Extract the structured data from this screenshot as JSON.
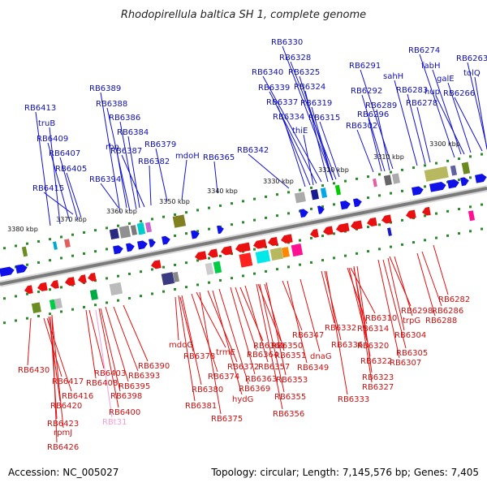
{
  "title": "Rhodopirellula baltica SH 1, complete genome",
  "footer": {
    "accession": "Accession: NC_005027",
    "summary": "Topology: circular; Length: 7,145,576 bp; Genes: 7,405"
  },
  "ruler_labels": [
    "3300 kbp",
    "3310 kbp",
    "3320 kbp",
    "3330 kbp",
    "3340 kbp",
    "3350 kbp",
    "3360 kbp",
    "3370 kbp",
    "3380 kbp"
  ],
  "colors": {
    "forward": "#1010e8",
    "reverse": "#e81010",
    "label_forward": "#1010b0",
    "label_reverse": "#cc1010",
    "rna": "#f0a0d8",
    "backbone": "#808080"
  },
  "top_labels": [
    "RB6413",
    "truB",
    "RB6409",
    "RB6407",
    "RB6405",
    "RB6415",
    "RB6389",
    "RB6388",
    "RB6386",
    "RB6384",
    "rbn",
    "RB6387",
    "RB6394",
    "RB6382",
    "RB6379",
    "mdoH",
    "RB6365",
    "RB6342",
    "RB6330",
    "RB6328",
    "RB6340",
    "RB6325",
    "RB6339",
    "RB6324",
    "RB6337",
    "RB6319",
    "RB6334",
    "RB6315",
    "thiE",
    "RB6291",
    "RB6292",
    "RB6289",
    "RB6296",
    "RB6302",
    "sahH",
    "RB6283",
    "RB6278",
    "RB6274",
    "fabH",
    "galE",
    "hup",
    "RB6266",
    "RB6263",
    "tolQ"
  ],
  "bottom_labels": [
    "RB6430",
    "RB6417",
    "RB6416",
    "RB6420",
    "RB6423",
    "rpmJ",
    "RB6426",
    "RB6403",
    "RB6408",
    "RB6393",
    "RB6395",
    "RB6398",
    "RB6400",
    "RBt31",
    "RB6390",
    "mdoG",
    "RB6378",
    "RB6380",
    "RB6381",
    "trmE",
    "RB6374",
    "RB6375",
    "RB6372",
    "hydG",
    "RB6369",
    "RB6360",
    "RB6364",
    "RB6363",
    "RB6357",
    "RB6350",
    "RB6351",
    "RB6355",
    "RB6356",
    "RB6353",
    "RB6347",
    "RB6349",
    "dnaG",
    "RB6332",
    "RB6336",
    "RB6333",
    "RB6310",
    "RB6314",
    "RB6320",
    "RB6322",
    "RB6323",
    "RB6327",
    "RB6298",
    "trpG",
    "RB6304",
    "RB6305",
    "RB6307",
    "RB6286",
    "RB6288",
    "RB6282"
  ]
}
